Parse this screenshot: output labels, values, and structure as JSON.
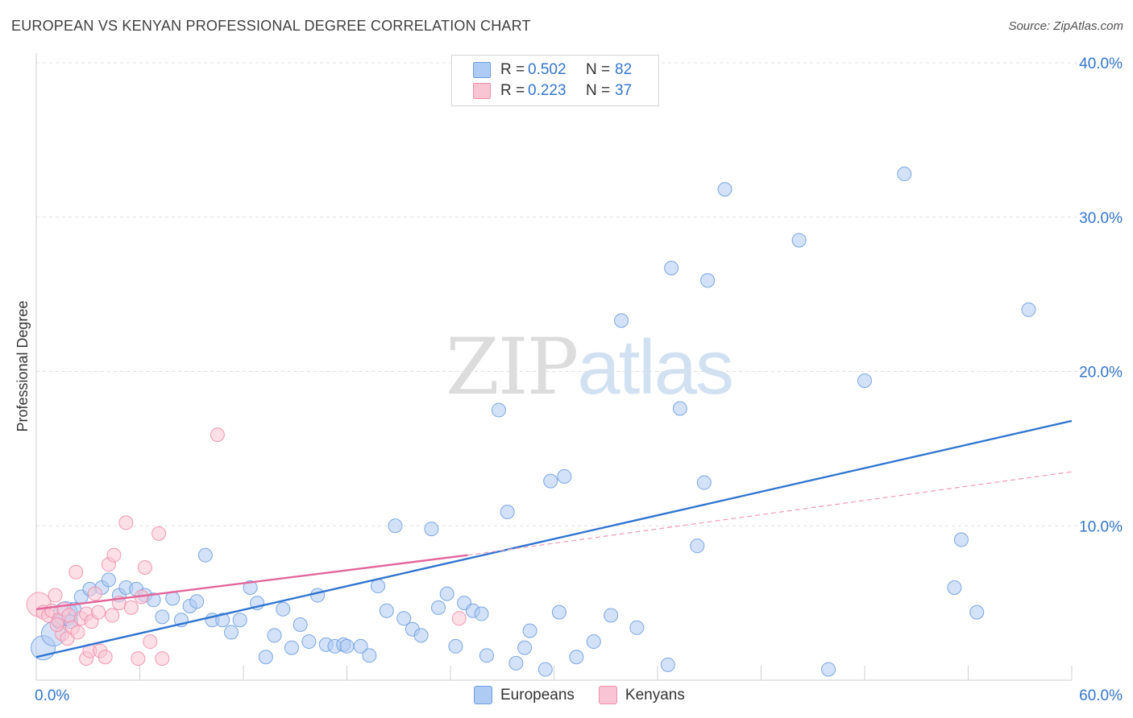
{
  "header": {
    "title": "EUROPEAN VS KENYAN PROFESSIONAL DEGREE CORRELATION CHART",
    "source": "Source: ZipAtlas.com"
  },
  "watermark": {
    "zip": "ZIP",
    "atlas": "atlas"
  },
  "legend": {
    "rows": [
      {
        "r_label": "R =",
        "r_value": "0.502",
        "n_label": "N =",
        "n_value": "82",
        "color": "#aecbf3",
        "border": "#6f9ee0"
      },
      {
        "r_label": "R =",
        "r_value": "0.223",
        "n_label": "N =",
        "n_value": "37",
        "color": "#f9c4d4",
        "border": "#ef8fab"
      }
    ]
  },
  "bottom_legend": [
    {
      "label": "Europeans",
      "color": "#aecbf3",
      "border": "#6f9ee0"
    },
    {
      "label": "Kenyans",
      "color": "#f9c4d4",
      "border": "#ef8fab"
    }
  ],
  "chart_data": {
    "type": "scatter",
    "title": "EUROPEAN VS KENYAN PROFESSIONAL DEGREE CORRELATION CHART",
    "xlabel": "",
    "ylabel": "Professional Degree",
    "xlim": [
      0,
      60
    ],
    "ylim": [
      0,
      40
    ],
    "x_ticks": [
      0,
      6,
      12,
      18,
      24,
      30,
      36,
      42,
      48,
      54,
      60
    ],
    "y_ticks": [
      10,
      20,
      30,
      40
    ],
    "x_tick_labels": [
      {
        "value": 0,
        "label": "0.0%"
      },
      {
        "value": 60,
        "label": "60.0%"
      }
    ],
    "y_tick_labels": [
      {
        "value": 10,
        "label": "10.0%"
      },
      {
        "value": 20,
        "label": "20.0%"
      },
      {
        "value": 30,
        "label": "30.0%"
      },
      {
        "value": 40,
        "label": "40.0%"
      }
    ],
    "grid": "dashed horizontal",
    "series": [
      {
        "name": "Europeans",
        "color": "#aecbf3",
        "border": "#6f9ee0",
        "trend": {
          "x": [
            0,
            60
          ],
          "y": [
            1.5,
            16.8
          ],
          "color": "#2f74d0",
          "style": "solid"
        },
        "points": [
          {
            "x": 0.4,
            "y": 2.1,
            "s": 2
          },
          {
            "x": 1.0,
            "y": 3.0,
            "s": 2
          },
          {
            "x": 1.3,
            "y": 3.8,
            "s": 1
          },
          {
            "x": 1.7,
            "y": 4.3,
            "s": 2
          },
          {
            "x": 2.0,
            "y": 3.8,
            "s": 1
          },
          {
            "x": 2.2,
            "y": 4.6,
            "s": 1
          },
          {
            "x": 2.6,
            "y": 5.4,
            "s": 1
          },
          {
            "x": 3.1,
            "y": 5.9,
            "s": 1
          },
          {
            "x": 3.8,
            "y": 6.0,
            "s": 1
          },
          {
            "x": 4.2,
            "y": 6.5,
            "s": 1
          },
          {
            "x": 4.8,
            "y": 5.5,
            "s": 1
          },
          {
            "x": 5.2,
            "y": 6.0,
            "s": 1
          },
          {
            "x": 5.8,
            "y": 5.9,
            "s": 1
          },
          {
            "x": 6.3,
            "y": 5.5,
            "s": 1
          },
          {
            "x": 6.8,
            "y": 5.2,
            "s": 1
          },
          {
            "x": 7.3,
            "y": 4.1,
            "s": 1
          },
          {
            "x": 7.9,
            "y": 5.3,
            "s": 1
          },
          {
            "x": 8.4,
            "y": 3.9,
            "s": 1
          },
          {
            "x": 8.9,
            "y": 4.8,
            "s": 1
          },
          {
            "x": 9.3,
            "y": 5.1,
            "s": 1
          },
          {
            "x": 9.8,
            "y": 8.1,
            "s": 1
          },
          {
            "x": 10.2,
            "y": 3.9,
            "s": 1
          },
          {
            "x": 10.8,
            "y": 3.9,
            "s": 1
          },
          {
            "x": 11.3,
            "y": 3.1,
            "s": 1
          },
          {
            "x": 11.8,
            "y": 3.9,
            "s": 1
          },
          {
            "x": 12.4,
            "y": 6.0,
            "s": 1
          },
          {
            "x": 12.8,
            "y": 5.0,
            "s": 1
          },
          {
            "x": 13.3,
            "y": 1.5,
            "s": 1
          },
          {
            "x": 13.8,
            "y": 2.9,
            "s": 1
          },
          {
            "x": 14.3,
            "y": 4.6,
            "s": 1
          },
          {
            "x": 14.8,
            "y": 2.1,
            "s": 1
          },
          {
            "x": 15.3,
            "y": 3.6,
            "s": 1
          },
          {
            "x": 15.8,
            "y": 2.5,
            "s": 1
          },
          {
            "x": 16.3,
            "y": 5.5,
            "s": 1
          },
          {
            "x": 16.8,
            "y": 2.3,
            "s": 1
          },
          {
            "x": 17.3,
            "y": 2.2,
            "s": 1
          },
          {
            "x": 17.8,
            "y": 2.3,
            "s": 1
          },
          {
            "x": 18.0,
            "y": 2.2,
            "s": 1
          },
          {
            "x": 18.8,
            "y": 2.2,
            "s": 1
          },
          {
            "x": 19.3,
            "y": 1.6,
            "s": 1
          },
          {
            "x": 19.8,
            "y": 6.1,
            "s": 1
          },
          {
            "x": 20.3,
            "y": 4.5,
            "s": 1
          },
          {
            "x": 20.8,
            "y": 10.0,
            "s": 1
          },
          {
            "x": 21.3,
            "y": 4.0,
            "s": 1
          },
          {
            "x": 21.8,
            "y": 3.3,
            "s": 1
          },
          {
            "x": 22.3,
            "y": 2.9,
            "s": 1
          },
          {
            "x": 22.9,
            "y": 9.8,
            "s": 1
          },
          {
            "x": 23.3,
            "y": 4.7,
            "s": 1
          },
          {
            "x": 23.8,
            "y": 5.6,
            "s": 1
          },
          {
            "x": 24.3,
            "y": 2.2,
            "s": 1
          },
          {
            "x": 24.8,
            "y": 5.0,
            "s": 1
          },
          {
            "x": 25.3,
            "y": 4.5,
            "s": 1
          },
          {
            "x": 25.8,
            "y": 4.3,
            "s": 1
          },
          {
            "x": 26.1,
            "y": 1.6,
            "s": 1
          },
          {
            "x": 26.8,
            "y": 17.5,
            "s": 1
          },
          {
            "x": 27.3,
            "y": 10.9,
            "s": 1
          },
          {
            "x": 27.8,
            "y": 1.1,
            "s": 1
          },
          {
            "x": 28.3,
            "y": 2.1,
            "s": 1
          },
          {
            "x": 28.6,
            "y": 3.2,
            "s": 1
          },
          {
            "x": 29.5,
            "y": 0.7,
            "s": 1
          },
          {
            "x": 29.8,
            "y": 12.9,
            "s": 1
          },
          {
            "x": 30.3,
            "y": 4.4,
            "s": 1
          },
          {
            "x": 30.6,
            "y": 13.2,
            "s": 1
          },
          {
            "x": 31.3,
            "y": 1.5,
            "s": 1
          },
          {
            "x": 32.3,
            "y": 2.5,
            "s": 1
          },
          {
            "x": 33.3,
            "y": 4.2,
            "s": 1
          },
          {
            "x": 33.9,
            "y": 23.3,
            "s": 1
          },
          {
            "x": 34.8,
            "y": 3.4,
            "s": 1
          },
          {
            "x": 36.6,
            "y": 1.0,
            "s": 1
          },
          {
            "x": 36.8,
            "y": 26.7,
            "s": 1
          },
          {
            "x": 37.3,
            "y": 17.6,
            "s": 1
          },
          {
            "x": 38.3,
            "y": 8.7,
            "s": 1
          },
          {
            "x": 38.7,
            "y": 12.8,
            "s": 1
          },
          {
            "x": 38.9,
            "y": 25.9,
            "s": 1
          },
          {
            "x": 39.9,
            "y": 31.8,
            "s": 1
          },
          {
            "x": 44.2,
            "y": 28.5,
            "s": 1
          },
          {
            "x": 45.9,
            "y": 0.7,
            "s": 1
          },
          {
            "x": 48.0,
            "y": 19.4,
            "s": 1
          },
          {
            "x": 50.3,
            "y": 32.8,
            "s": 1
          },
          {
            "x": 53.2,
            "y": 6.0,
            "s": 1
          },
          {
            "x": 53.6,
            "y": 9.1,
            "s": 1
          },
          {
            "x": 54.5,
            "y": 4.4,
            "s": 1
          },
          {
            "x": 57.5,
            "y": 24.0,
            "s": 1
          }
        ]
      },
      {
        "name": "Kenyans",
        "color": "#f9c4d4",
        "border": "#ef8fab",
        "trend": {
          "x": [
            0,
            25
          ],
          "y": [
            4.6,
            8.1
          ],
          "color": "#e2669a",
          "style": "solid"
        },
        "trend_extension": {
          "x": [
            25,
            60
          ],
          "y": [
            8.1,
            13.5
          ],
          "color": "#ef9ab8",
          "style": "dashed"
        },
        "points": [
          {
            "x": 0.15,
            "y": 4.9,
            "s": 2
          },
          {
            "x": 0.4,
            "y": 4.4,
            "s": 1
          },
          {
            "x": 0.7,
            "y": 4.2,
            "s": 1
          },
          {
            "x": 0.9,
            "y": 4.5,
            "s": 1
          },
          {
            "x": 1.1,
            "y": 5.5,
            "s": 1
          },
          {
            "x": 1.3,
            "y": 3.9,
            "s": 1
          },
          {
            "x": 1.5,
            "y": 3.0,
            "s": 1
          },
          {
            "x": 1.6,
            "y": 4.6,
            "s": 1
          },
          {
            "x": 1.8,
            "y": 2.7,
            "s": 1
          },
          {
            "x": 1.9,
            "y": 4.2,
            "s": 1
          },
          {
            "x": 2.1,
            "y": 3.4,
            "s": 1
          },
          {
            "x": 2.3,
            "y": 7.0,
            "s": 1
          },
          {
            "x": 2.4,
            "y": 3.1,
            "s": 1
          },
          {
            "x": 2.6,
            "y": 4.0,
            "s": 1
          },
          {
            "x": 2.9,
            "y": 4.3,
            "s": 1
          },
          {
            "x": 2.9,
            "y": 1.4,
            "s": 1
          },
          {
            "x": 3.1,
            "y": 1.9,
            "s": 1
          },
          {
            "x": 3.2,
            "y": 3.8,
            "s": 1
          },
          {
            "x": 3.4,
            "y": 5.6,
            "s": 1
          },
          {
            "x": 3.6,
            "y": 4.4,
            "s": 1
          },
          {
            "x": 3.7,
            "y": 1.9,
            "s": 1
          },
          {
            "x": 4.0,
            "y": 1.5,
            "s": 1
          },
          {
            "x": 4.2,
            "y": 7.5,
            "s": 1
          },
          {
            "x": 4.4,
            "y": 4.2,
            "s": 1
          },
          {
            "x": 4.5,
            "y": 8.1,
            "s": 1
          },
          {
            "x": 4.8,
            "y": 5.0,
            "s": 1
          },
          {
            "x": 5.2,
            "y": 10.2,
            "s": 1
          },
          {
            "x": 5.5,
            "y": 4.7,
            "s": 1
          },
          {
            "x": 5.9,
            "y": 1.4,
            "s": 1
          },
          {
            "x": 6.1,
            "y": 5.4,
            "s": 1
          },
          {
            "x": 6.3,
            "y": 7.3,
            "s": 1
          },
          {
            "x": 6.6,
            "y": 2.5,
            "s": 1
          },
          {
            "x": 7.1,
            "y": 9.5,
            "s": 1
          },
          {
            "x": 7.3,
            "y": 1.4,
            "s": 1
          },
          {
            "x": 10.5,
            "y": 15.9,
            "s": 1
          },
          {
            "x": 24.5,
            "y": 4.0,
            "s": 1
          },
          {
            "x": 1.2,
            "y": 3.6,
            "s": 1
          }
        ]
      }
    ]
  }
}
